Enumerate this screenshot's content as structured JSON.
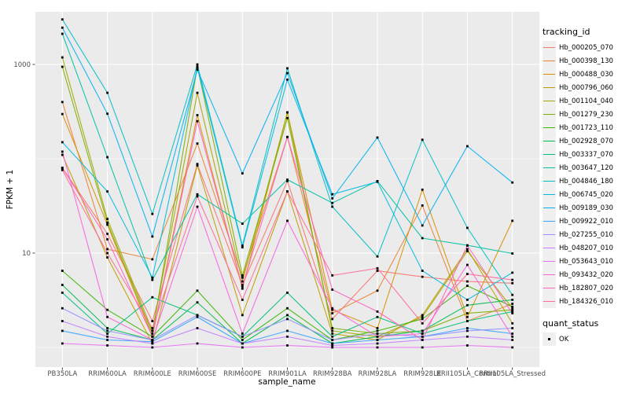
{
  "figure": {
    "x_axis_title": "sample_name",
    "y_axis_title": "FPKM + 1",
    "legend": {
      "tracking_title": "tracking_id",
      "quant_title": "quant_status",
      "quant_ok_label": "OK"
    }
  },
  "chart_data": {
    "type": "line",
    "title": "",
    "xlabel": "sample_name",
    "ylabel": "FPKM + 1",
    "y_scale": "log10",
    "legend_position": "right",
    "grid": true,
    "y_ticks": [
      {
        "value": 10,
        "label": "10"
      },
      {
        "value": 1000,
        "label": "1000"
      }
    ],
    "y_minor_gridlines": [
      1,
      100
    ],
    "ylim": [
      0.62,
      3630
    ],
    "colors": {
      "panel_bg": "#EBEBEB",
      "gridline": "#FFFFFF",
      "tick_mark": "#333333",
      "tick_label": "#4D4D4D",
      "point": "#000000",
      "legend_key_bg": "#F0F0F0"
    },
    "point_marker": {
      "shape": "square",
      "color": "#000000",
      "meaning": "quant_status OK"
    },
    "categories": [
      "PB350LA",
      "RRIM600LA",
      "RRIM600LE",
      "RRIM600SE",
      "RRIM600PE",
      "RRIM901LA",
      "RRIM928BA",
      "RRIM928LA",
      "RRIM928LE",
      "RRII105LA_Control",
      "RRII105LA_Stressed"
    ],
    "series": [
      {
        "name": "Hb_000205_070",
        "color": "#F8766D",
        "values": [
          80,
          16,
          1.9,
          88,
          4.6,
          58,
          2.0,
          6.5,
          5.6,
          5.0,
          4.8
        ]
      },
      {
        "name": "Hb_000398_130",
        "color": "#EA8331",
        "values": [
          400,
          11,
          8.6,
          145,
          5.5,
          170,
          2.3,
          4.0,
          32,
          1.9,
          2.9
        ]
      },
      {
        "name": "Hb_000488_030",
        "color": "#D89000",
        "values": [
          298,
          20,
          1.3,
          290,
          4.2,
          310,
          2.5,
          1.6,
          47,
          2.1,
          22
        ]
      },
      {
        "name": "Hb_000796_060",
        "color": "#C09B00",
        "values": [
          110,
          9,
          1.1,
          85,
          2.2,
          45,
          1.4,
          1.2,
          2.2,
          11,
          1.8
        ]
      },
      {
        "name": "Hb_001104_040",
        "color": "#A3A500",
        "values": [
          1189,
          23,
          1.5,
          500,
          5.0,
          310,
          1.5,
          1.3,
          2.1,
          10.5,
          2.6
        ]
      },
      {
        "name": "Hb_001279_230",
        "color": "#7CAE00",
        "values": [
          944,
          21,
          1.4,
          950,
          5.8,
          270,
          1.6,
          1.4,
          1.5,
          2.3,
          2.5
        ]
      },
      {
        "name": "Hb_001723_110",
        "color": "#39B600",
        "values": [
          6.5,
          2.5,
          1.3,
          4.0,
          1.2,
          2.6,
          1.2,
          1.5,
          2.0,
          4.5,
          2.7
        ]
      },
      {
        "name": "Hb_002928_070",
        "color": "#00BB4E",
        "values": [
          4.6,
          1.6,
          1.2,
          3.0,
          1.1,
          2.2,
          1.1,
          1.3,
          1.5,
          2.8,
          3.2
        ]
      },
      {
        "name": "Hb_003337_070",
        "color": "#00BF7D",
        "values": [
          3.8,
          1.4,
          3.4,
          2.2,
          1.3,
          3.8,
          1.3,
          2.1,
          1.4,
          1.9,
          2.4
        ]
      },
      {
        "name": "Hb_003647_120",
        "color": "#00C1A3",
        "values": [
          2113,
          104,
          5.2,
          42,
          20.5,
          60,
          34,
          58,
          14.4,
          12.1,
          9.9
        ]
      },
      {
        "name": "Hb_004846_180",
        "color": "#00BFC4",
        "values": [
          3000,
          500,
          26,
          1000,
          12,
          910,
          31,
          9.2,
          159,
          18.5,
          3.6
        ]
      },
      {
        "name": "Hb_006745_020",
        "color": "#00BAE0",
        "values": [
          150,
          45,
          5.5,
          930,
          11.5,
          690,
          42,
          57,
          6.5,
          3.2,
          6.2
        ]
      },
      {
        "name": "Hb_009189_030",
        "color": "#00B0F6",
        "values": [
          2455,
          300,
          15,
          880,
          70,
          810,
          38,
          168,
          19.6,
          136,
          56
        ]
      },
      {
        "name": "Hb_009922_010",
        "color": "#35A2FF",
        "values": [
          1.5,
          1.2,
          1.15,
          2.1,
          1.1,
          1.5,
          1.1,
          1.2,
          1.3,
          1.6,
          1.4
        ]
      },
      {
        "name": "Hb_027255_010",
        "color": "#9590FF",
        "values": [
          2.6,
          1.5,
          1.2,
          2.2,
          1.3,
          2.0,
          1.2,
          1.4,
          1.3,
          1.5,
          1.6
        ]
      },
      {
        "name": "Hb_048207_010",
        "color": "#C77CFF",
        "values": [
          1.9,
          1.3,
          1.1,
          1.6,
          1.1,
          1.3,
          1.05,
          1.1,
          1.2,
          1.3,
          1.2
        ]
      },
      {
        "name": "Hb_053643_010",
        "color": "#E76BF3",
        "values": [
          1.1,
          1.05,
          1.0,
          1.1,
          1.0,
          1.05,
          1.0,
          1.0,
          1.0,
          1.05,
          1.0
        ]
      },
      {
        "name": "Hb_093432_020",
        "color": "#FA62DB",
        "values": [
          119,
          2.1,
          1.2,
          31,
          1.4,
          22,
          2.6,
          1.3,
          1.4,
          7.5,
          1.3
        ]
      },
      {
        "name": "Hb_182807_020",
        "color": "#FF62BC",
        "values": [
          80,
          14,
          1.3,
          250,
          4.4,
          170,
          4.1,
          2.4,
          1.2,
          12,
          2.3
        ]
      },
      {
        "name": "Hb_184326_010",
        "color": "#FF6A98",
        "values": [
          76,
          10,
          1.6,
          40,
          3.2,
          45,
          5.8,
          6.9,
          1.8,
          6.0,
          5.2
        ]
      }
    ]
  }
}
